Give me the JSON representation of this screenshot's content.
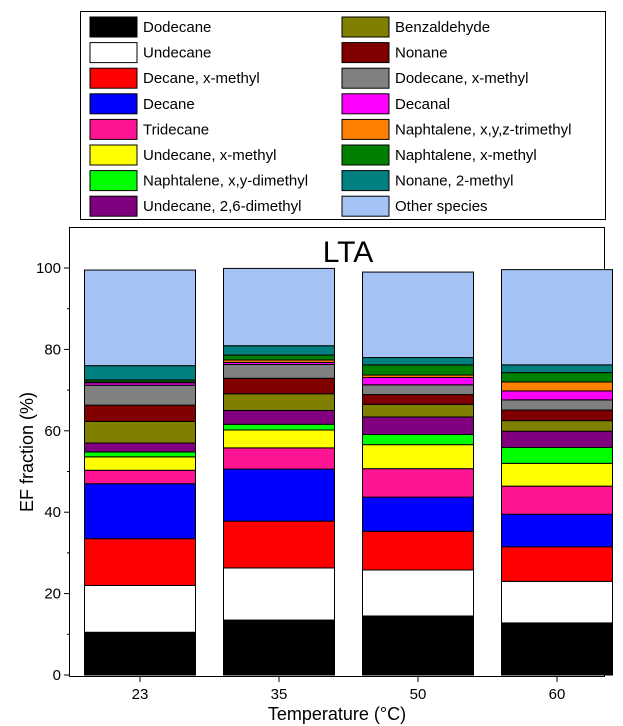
{
  "chart_data": {
    "type": "bar",
    "stacked": true,
    "title": "LTA",
    "xlabel": "Temperature (°C)",
    "ylabel": "EF fraction (%)",
    "ylim": [
      0,
      105
    ],
    "yticks": [
      0,
      20,
      40,
      60,
      80,
      100
    ],
    "categories": [
      "23",
      "35",
      "50",
      "60"
    ],
    "legend_position": "top",
    "series": [
      {
        "name": "Dodecane",
        "color": "#000000",
        "values": [
          10.5,
          13.5,
          14.5,
          12.8
        ]
      },
      {
        "name": "Undecane",
        "color": "#ffffff",
        "values": [
          11.5,
          12.8,
          11.3,
          10.2
        ]
      },
      {
        "name": "Decane, x-methyl",
        "color": "#ff0000",
        "values": [
          11.5,
          11.5,
          9.5,
          8.5
        ]
      },
      {
        "name": "Decane",
        "color": "#0000ff",
        "values": [
          13.5,
          12.8,
          8.4,
          8.0
        ]
      },
      {
        "name": "Tridecane",
        "color": "#ff1493",
        "values": [
          3.3,
          5.2,
          7.0,
          6.9
        ]
      },
      {
        "name": "Undecane, x-methyl",
        "color": "#ffff00",
        "values": [
          3.3,
          4.4,
          5.9,
          5.6
        ]
      },
      {
        "name": "Naphtalene, x,y-dimethyl",
        "color": "#00ff00",
        "values": [
          1.2,
          1.4,
          2.5,
          3.9
        ]
      },
      {
        "name": "Undecane, 2,6-dimethyl",
        "color": "#800080",
        "values": [
          2.2,
          3.4,
          4.3,
          4.0
        ]
      },
      {
        "name": "Benzaldehyde",
        "color": "#808000",
        "values": [
          5.3,
          4.1,
          3.1,
          2.6
        ]
      },
      {
        "name": "Nonane",
        "color": "#800000",
        "values": [
          4.0,
          3.8,
          2.4,
          2.6
        ]
      },
      {
        "name": "Dodecane, x-methyl",
        "color": "#808080",
        "values": [
          4.9,
          3.4,
          2.4,
          2.5
        ]
      },
      {
        "name": "Decanal",
        "color": "#ff00ff",
        "values": [
          0.6,
          0.5,
          1.8,
          2.2
        ]
      },
      {
        "name": "Naphtalene, x,y,z-trimethyl",
        "color": "#ff8000",
        "values": [
          0.2,
          0.6,
          0.6,
          2.2
        ]
      },
      {
        "name": "Naphtalene, x-methyl",
        "color": "#008000",
        "values": [
          0.5,
          1.2,
          2.5,
          2.3
        ]
      },
      {
        "name": "Nonane, 2-methyl",
        "color": "#008080",
        "values": [
          3.5,
          2.3,
          1.8,
          1.9
        ]
      },
      {
        "name": "Other species",
        "color": "#a4c2f4",
        "values": [
          23.5,
          19.0,
          21.0,
          23.4
        ]
      }
    ]
  }
}
